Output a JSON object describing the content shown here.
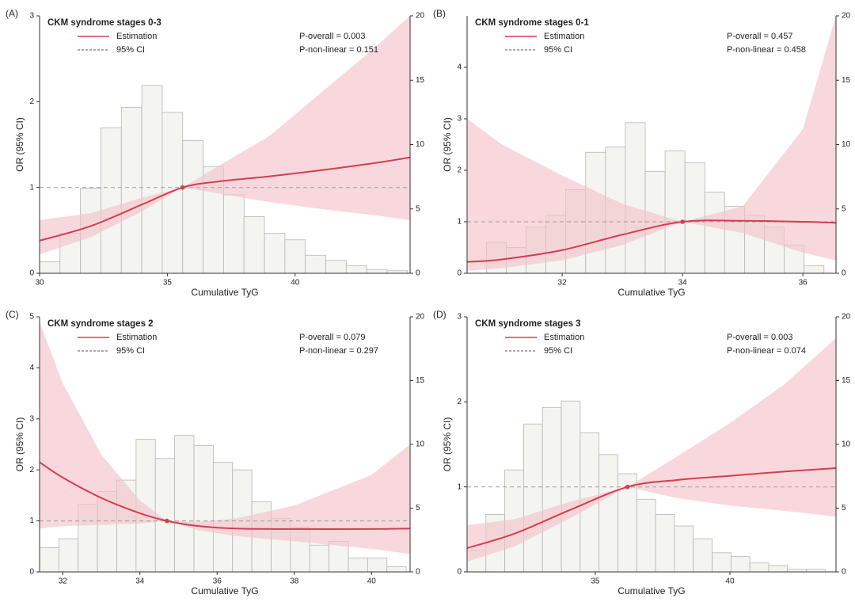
{
  "chart_data": [
    {
      "type": "line",
      "label": "(A)",
      "title": "CKM syndrome stages 0-3",
      "xlabel": "Cumulative TyG",
      "ylabel": "OR (95% CI)",
      "annotations": [
        "P-overall = 0.003",
        "P-non-linear = 0.151"
      ],
      "xlim": [
        30,
        44.5
      ],
      "xticks": [
        30,
        35,
        40
      ],
      "ylim": [
        0,
        3
      ],
      "yticks": [
        0,
        1,
        2,
        3
      ],
      "y2lim": [
        0,
        20
      ],
      "y2ticks": [
        0,
        5,
        10,
        15,
        20
      ],
      "x": [
        30,
        32,
        34,
        35.6,
        37,
        39,
        41,
        43,
        44.5
      ],
      "series": [
        {
          "name": "Estimation",
          "color": "#d43d51",
          "values": [
            0.38,
            0.55,
            0.8,
            1.0,
            1.07,
            1.13,
            1.2,
            1.28,
            1.35
          ]
        },
        {
          "name": "95% CI",
          "color": "#f5c3c9",
          "upper": [
            0.62,
            0.7,
            0.88,
            1.0,
            1.25,
            1.6,
            2.1,
            2.6,
            3.0
          ],
          "lower": [
            0.22,
            0.42,
            0.72,
            1.0,
            0.93,
            0.83,
            0.75,
            0.68,
            0.62
          ]
        }
      ],
      "reference_line": 1,
      "reference_point": {
        "x": 35.6,
        "y": 1
      },
      "histogram": {
        "axis": "y2",
        "color": "#f4f5f1",
        "bins": [
          30,
          30.8,
          31.6,
          32.4,
          33.2,
          34,
          34.8,
          35.6,
          36.4,
          37.2,
          38,
          38.8,
          39.6,
          40.4,
          41.2,
          42,
          42.8,
          43.6,
          44.4
        ],
        "values": [
          0.9,
          3.1,
          6.6,
          11.3,
          12.9,
          14.6,
          12.5,
          10.3,
          8.3,
          6.1,
          4.4,
          3.1,
          2.6,
          1.4,
          1.0,
          0.6,
          0.3,
          0.2
        ]
      }
    },
    {
      "type": "line",
      "label": "(B)",
      "title": "CKM syndrome stages 0-1",
      "xlabel": "Cumulative TyG",
      "ylabel": "OR (95% CI)",
      "annotations": [
        "P-overall = 0.457",
        "P-non-linear = 0.458"
      ],
      "xlim": [
        30.42,
        36.55
      ],
      "xticks": [
        32,
        34,
        36
      ],
      "ylim": [
        0,
        5
      ],
      "yticks": [
        0,
        1,
        2,
        3,
        4
      ],
      "y2lim": [
        0,
        20
      ],
      "y2ticks": [
        0,
        5,
        10,
        15,
        20
      ],
      "x": [
        30.42,
        31,
        32,
        33,
        34,
        35,
        36,
        36.55
      ],
      "series": [
        {
          "name": "Estimation",
          "color": "#d43d51",
          "values": [
            0.22,
            0.27,
            0.45,
            0.75,
            1.0,
            1.02,
            1.0,
            0.98
          ]
        },
        {
          "name": "95% CI",
          "color": "#f5c3c9",
          "upper": [
            3.0,
            2.5,
            1.9,
            1.35,
            1.0,
            1.3,
            2.8,
            5.0
          ],
          "lower": [
            0.05,
            0.1,
            0.25,
            0.55,
            1.0,
            0.78,
            0.4,
            0.25
          ]
        }
      ],
      "reference_line": 1,
      "reference_point": {
        "x": 34,
        "y": 1
      },
      "histogram": {
        "axis": "y2",
        "color": "#f4f5f1",
        "bins": [
          30.74,
          31.07,
          31.4,
          31.73,
          32.06,
          32.39,
          32.72,
          33.05,
          33.38,
          33.71,
          34.04,
          34.37,
          34.7,
          35.03,
          35.36,
          35.69,
          36.02,
          36.35
        ],
        "values": [
          2.4,
          2.0,
          3.6,
          4.5,
          6.5,
          9.4,
          9.8,
          11.7,
          7.9,
          9.5,
          8.6,
          6.3,
          5.2,
          4.5,
          3.6,
          2.2,
          0.6
        ]
      }
    },
    {
      "type": "line",
      "label": "(C)",
      "title": "CKM syndrome stages 2",
      "xlabel": "Cumulative TyG",
      "ylabel": "OR (95% CI)",
      "annotations": [
        "P-overall = 0.079",
        "P-non-linear = 0.297"
      ],
      "xlim": [
        31.4,
        41
      ],
      "xticks": [
        32,
        34,
        36,
        38,
        40
      ],
      "ylim": [
        0,
        5
      ],
      "yticks": [
        0,
        1,
        2,
        3,
        4,
        5
      ],
      "y2lim": [
        0,
        20
      ],
      "y2ticks": [
        0,
        5,
        10,
        15,
        20
      ],
      "x": [
        31.4,
        32,
        33,
        34,
        34.7,
        35.5,
        36.5,
        38,
        40,
        41
      ],
      "series": [
        {
          "name": "Estimation",
          "color": "#d43d51",
          "values": [
            2.15,
            1.85,
            1.45,
            1.15,
            1.0,
            0.9,
            0.85,
            0.84,
            0.84,
            0.85
          ]
        },
        {
          "name": "95% CI",
          "color": "#f5c3c9",
          "upper": [
            4.9,
            3.7,
            2.3,
            1.4,
            1.0,
            0.98,
            1.05,
            1.3,
            1.9,
            2.5
          ],
          "lower": [
            0.85,
            0.9,
            0.92,
            0.95,
            1.0,
            0.82,
            0.7,
            0.6,
            0.45,
            0.35
          ]
        }
      ],
      "reference_line": 1,
      "reference_point": {
        "x": 34.7,
        "y": 1
      },
      "histogram": {
        "axis": "y2",
        "color": "#f4f5f1",
        "bins": [
          31.4,
          31.9,
          32.4,
          32.9,
          33.4,
          33.9,
          34.4,
          34.9,
          35.4,
          35.9,
          36.4,
          36.9,
          37.4,
          37.9,
          38.4,
          38.9,
          39.4,
          39.9,
          40.4,
          40.9
        ],
        "values": [
          1.9,
          2.6,
          5.3,
          6.3,
          7.2,
          10.4,
          8.9,
          10.7,
          9.9,
          8.6,
          8.0,
          5.5,
          4.2,
          3.5,
          2.1,
          2.4,
          1.1,
          1.1,
          0.4
        ]
      }
    },
    {
      "type": "line",
      "label": "(D)",
      "title": "CKM syndrome stages 3",
      "xlabel": "Cumulative TyG",
      "ylabel": "OR (95% CI)",
      "annotations": [
        "P-overall = 0.003",
        "P-non-linear = 0.074"
      ],
      "xlim": [
        30.24,
        43.94
      ],
      "xticks": [
        35,
        40
      ],
      "ylim": [
        0,
        3
      ],
      "yticks": [
        0,
        1,
        2,
        3
      ],
      "y2lim": [
        0,
        20
      ],
      "y2ticks": [
        0,
        5,
        10,
        15,
        20
      ],
      "x": [
        30.24,
        32,
        34,
        36.2,
        38,
        40,
        42,
        43.94
      ],
      "series": [
        {
          "name": "Estimation",
          "color": "#d43d51",
          "values": [
            0.28,
            0.45,
            0.72,
            1.0,
            1.08,
            1.13,
            1.18,
            1.22
          ]
        },
        {
          "name": "95% CI",
          "color": "#f5c3c9",
          "upper": [
            0.55,
            0.62,
            0.82,
            1.0,
            1.35,
            1.75,
            2.2,
            2.75
          ],
          "lower": [
            0.12,
            0.3,
            0.62,
            1.0,
            0.87,
            0.78,
            0.72,
            0.65
          ]
        }
      ],
      "reference_line": 1,
      "reference_point": {
        "x": 36.2,
        "y": 1
      },
      "histogram": {
        "axis": "y2",
        "color": "#f4f5f1",
        "bins": [
          30.24,
          30.94,
          31.64,
          32.34,
          33.04,
          33.74,
          34.44,
          35.14,
          35.84,
          36.54,
          37.24,
          37.94,
          38.64,
          39.34,
          40.04,
          40.74,
          41.44,
          42.14,
          42.84,
          43.54
        ],
        "values": [
          1.7,
          4.5,
          8.0,
          11.6,
          12.9,
          13.4,
          10.9,
          9.2,
          7.7,
          5.7,
          4.5,
          3.6,
          2.6,
          1.5,
          1.2,
          0.7,
          0.5,
          0.2,
          0.2
        ]
      }
    }
  ]
}
